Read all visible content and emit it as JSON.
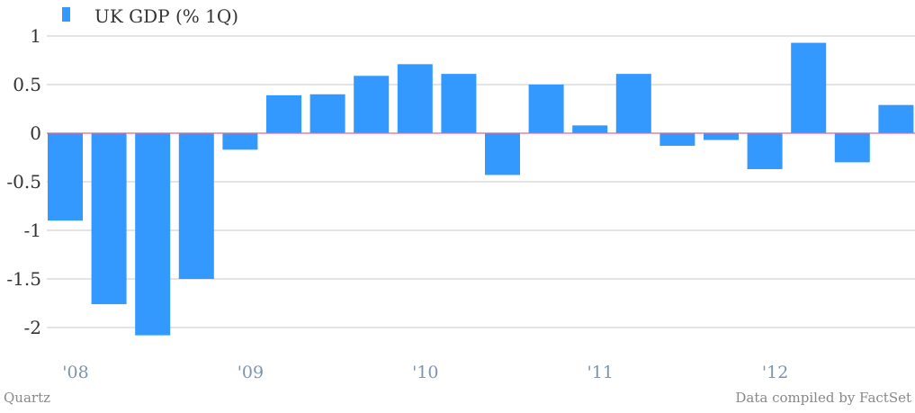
{
  "chart_data": {
    "type": "bar",
    "legend": "UK GDP (% 1Q)",
    "categories": [
      "2008Q1",
      "2008Q2",
      "2008Q3",
      "2008Q4",
      "2009Q1",
      "2009Q2",
      "2009Q3",
      "2009Q4",
      "2010Q1",
      "2010Q2",
      "2010Q3",
      "2010Q4",
      "2011Q1",
      "2011Q2",
      "2011Q3",
      "2011Q4",
      "2012Q1",
      "2012Q2",
      "2012Q3",
      "2012Q4"
    ],
    "values": [
      -0.9,
      -1.76,
      -2.08,
      -1.5,
      -0.17,
      0.39,
      0.4,
      0.59,
      0.71,
      0.61,
      -0.43,
      0.5,
      0.08,
      0.61,
      -0.13,
      -0.07,
      -0.37,
      0.93,
      -0.3,
      0.29
    ],
    "ylim": [
      -2,
      1
    ],
    "yticks": [
      "1",
      "0.5",
      "0",
      "-0.5",
      "-1",
      "-1.5",
      "-2"
    ],
    "xticks": [
      {
        "label": "'08",
        "index": 0
      },
      {
        "label": "'09",
        "index": 4
      },
      {
        "label": "'10",
        "index": 8
      },
      {
        "label": "'11",
        "index": 12
      },
      {
        "label": "'12",
        "index": 16
      }
    ],
    "grid": true,
    "legend_position": "top-left",
    "colors": {
      "bar": "#3399ff",
      "zero_line": "#d96a9a",
      "grid": "#c8c8c8",
      "xtick": "#7d95ad"
    }
  },
  "footer": {
    "source_left": "Quartz",
    "source_right": "Data compiled by FactSet"
  }
}
